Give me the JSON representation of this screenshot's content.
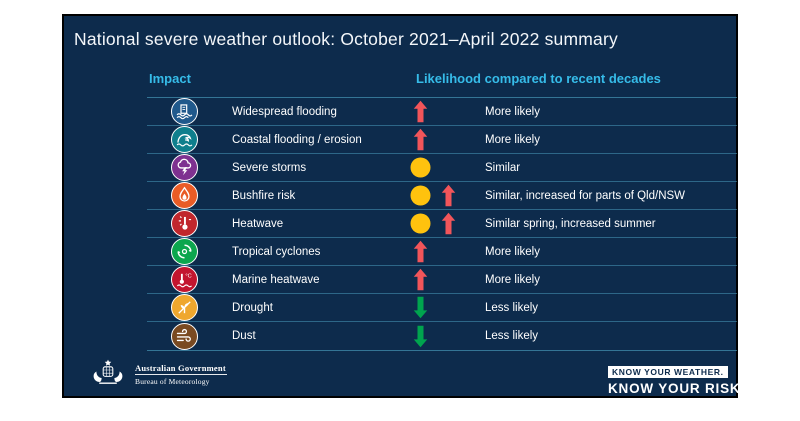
{
  "title": "National severe weather outlook: October 2021–April 2022 summary",
  "table": {
    "impact_header": "Impact",
    "likelihood_header": "Likelihood compared to recent decades",
    "rows": [
      {
        "label": "Widespread flooding",
        "icon": "flood-icon",
        "icon_color": "#20598c",
        "indicators": [
          "up"
        ],
        "likelihood": "More likely"
      },
      {
        "label": "Coastal flooding / erosion",
        "icon": "coastal-erosion-icon",
        "icon_color": "#0f7f8d",
        "indicators": [
          "up"
        ],
        "likelihood": "More likely"
      },
      {
        "label": "Severe storms",
        "icon": "storm-icon",
        "icon_color": "#7e3190",
        "indicators": [
          "similar"
        ],
        "likelihood": "Similar"
      },
      {
        "label": "Bushfire risk",
        "icon": "bushfire-icon",
        "icon_color": "#e95c26",
        "indicators": [
          "similar",
          "up"
        ],
        "likelihood": "Similar, increased for parts of Qld/NSW"
      },
      {
        "label": "Heatwave",
        "icon": "heatwave-icon",
        "icon_color": "#c0272d",
        "indicators": [
          "similar",
          "up"
        ],
        "likelihood": "Similar spring, increased summer"
      },
      {
        "label": "Tropical cyclones",
        "icon": "cyclone-icon",
        "icon_color": "#0ca64e",
        "indicators": [
          "up"
        ],
        "likelihood": "More likely"
      },
      {
        "label": "Marine heatwave",
        "icon": "marine-heatwave-icon",
        "icon_color": "#c3152f",
        "indicators": [
          "up"
        ],
        "likelihood": "More likely"
      },
      {
        "label": "Drought",
        "icon": "drought-icon",
        "icon_color": "#efa72e",
        "indicators": [
          "down"
        ],
        "likelihood": "Less likely"
      },
      {
        "label": "Dust",
        "icon": "dust-icon",
        "icon_color": "#7a4a21",
        "indicators": [
          "down"
        ],
        "likelihood": "Less likely"
      }
    ]
  },
  "footer": {
    "gov_name": "Australian Government",
    "gov_bureau": "Bureau of Meteorology",
    "tagline_badge": "KNOW YOUR WEATHER.",
    "tagline_main": "KNOW YOUR RISK."
  },
  "colors": {
    "panel_background": "#0d2b4c",
    "header_cyan": "#36bce9",
    "arrow_up_red": "#f2555a",
    "arrow_down_green": "#00a44e",
    "similar_yellow": "#ffc20e",
    "separator": "rgba(85,178,210,0.5)"
  }
}
